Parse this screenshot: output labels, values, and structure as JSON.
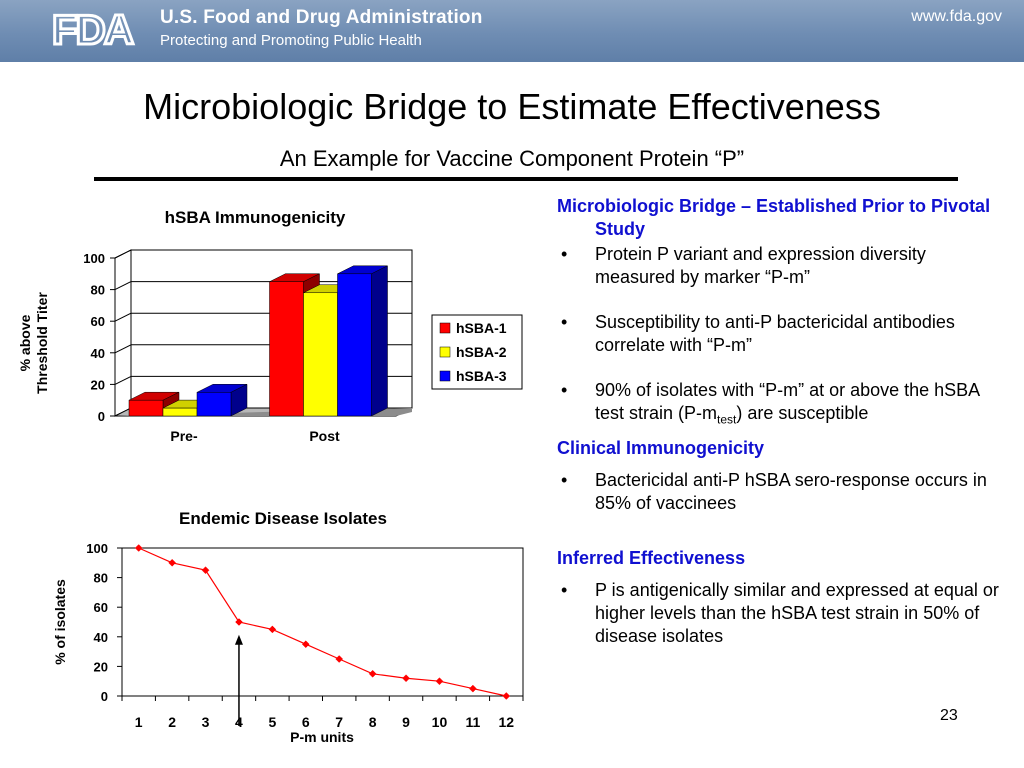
{
  "header": {
    "agency_name": "U.S. Food and Drug Administration",
    "agency_tagline": "Protecting and Promoting Public Health",
    "site_url": "www.fda.gov",
    "logo_text": "FDA",
    "banner_color": "#6f8db3"
  },
  "slide": {
    "title": "Microbiologic Bridge to Estimate Effectiveness",
    "subtitle": "An Example for Vaccine Component Protein “P”",
    "page_number": "23"
  },
  "right_panel": {
    "section1_heading": "Microbiologic Bridge – Established Prior to Pivotal Study",
    "bullet1": "Protein P variant and expression diversity measured by marker “P-m”",
    "bullet2": "Susceptibility to anti-P bactericidal antibodies correlate with “P-m”",
    "bullet3_before": "90% of isolates with “P-m” at or above the hSBA test strain (P-m",
    "bullet3_sub": "test",
    "bullet3_after": ") are susceptible",
    "section2_heading": "Clinical Immunogenicity",
    "bullet4": "Bactericidal anti-P hSBA sero-response occurs in 85% of vaccinees",
    "section3_heading": "Inferred Effectiveness",
    "bullet5": "P is antigenically similar and expressed at equal or higher levels than the hSBA test strain in 50% of disease isolates",
    "bullet_symbol": "•",
    "heading_color": "#1010d0"
  },
  "chart_data": [
    {
      "type": "bar",
      "title": "hSBA Immunogenicity",
      "xlabel": "",
      "ylabel": "% above Threshold Titer",
      "ylabel_lines": [
        "% above",
        "Threshold Titer"
      ],
      "categories": [
        "Pre-",
        "Post"
      ],
      "series": [
        {
          "name": "hSBA-1",
          "color": "#ff0000",
          "values": [
            10,
            85
          ]
        },
        {
          "name": "hSBA-2",
          "color": "#ffff00",
          "values": [
            5,
            78
          ]
        },
        {
          "name": "hSBA-3",
          "color": "#0000ff",
          "values": [
            15,
            90
          ]
        }
      ],
      "ylim": [
        0,
        100
      ],
      "yticks": [
        0,
        20,
        40,
        60,
        80,
        100
      ],
      "grid": "horizontal",
      "legend": "right",
      "style": "3d"
    },
    {
      "type": "line",
      "title": "Endemic Disease Isolates",
      "xlabel": "P-m units",
      "ylabel": "% of isolates",
      "x": [
        1,
        2,
        3,
        4,
        5,
        6,
        7,
        8,
        9,
        10,
        11,
        12
      ],
      "series": [
        {
          "color": "#ff0000",
          "values": [
            100,
            90,
            85,
            50,
            45,
            35,
            25,
            15,
            12,
            10,
            5,
            0
          ]
        }
      ],
      "ylim": [
        0,
        100
      ],
      "yticks": [
        0,
        20,
        40,
        60,
        80,
        100
      ],
      "grid": "none",
      "annotation": {
        "type": "arrow",
        "x": 4,
        "y": 40
      }
    }
  ]
}
